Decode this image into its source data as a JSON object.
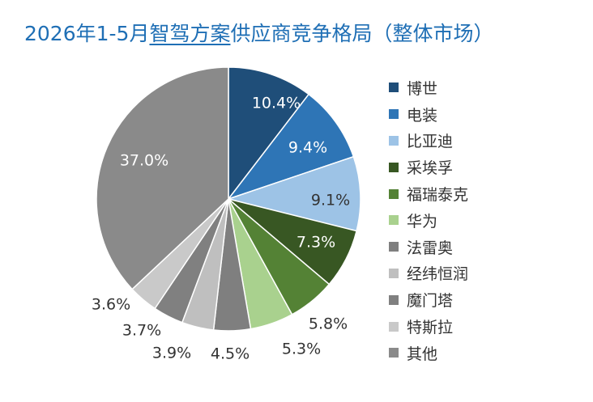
{
  "title": {
    "pre": "2026年1-5月",
    "underlined": "智驾方案",
    "post": "供应商竞争格局（整体市场）"
  },
  "chart_data": {
    "type": "pie",
    "unit": "%",
    "start_angle_deg": 0,
    "direction": "clockwise",
    "legend_position": "right",
    "slices": [
      {
        "name": "博世",
        "value": 10.4,
        "label": "10.4%",
        "color": "#1F4E79",
        "label_style": "inside",
        "label_color": "#ffffff"
      },
      {
        "name": "电装",
        "value": 9.4,
        "label": "9.4%",
        "color": "#2E75B6",
        "label_style": "inside",
        "label_color": "#ffffff"
      },
      {
        "name": "比亚迪",
        "value": 9.1,
        "label": "9.1%",
        "color": "#9DC3E6",
        "label_style": "inside",
        "label_color": "#333333"
      },
      {
        "name": "采埃孚",
        "value": 7.3,
        "label": "7.3%",
        "color": "#385723",
        "label_style": "inside",
        "label_color": "#ffffff"
      },
      {
        "name": "福瑞泰克",
        "value": 5.8,
        "label": "5.8%",
        "color": "#548235",
        "label_style": "outside",
        "label_color": "#333333"
      },
      {
        "name": "华为",
        "value": 5.3,
        "label": "5.3%",
        "color": "#A9D18E",
        "label_style": "outside",
        "label_color": "#333333"
      },
      {
        "name": "法雷奥",
        "value": 4.5,
        "label": "4.5%",
        "color": "#7F7F7F",
        "label_style": "outside",
        "label_color": "#333333"
      },
      {
        "name": "经纬恒润",
        "value": 3.9,
        "label": "3.9%",
        "color": "#BFBFBF",
        "label_style": "outside",
        "label_color": "#333333"
      },
      {
        "name": "魔门塔",
        "value": 3.7,
        "label": "3.7%",
        "color": "#808080",
        "label_style": "outside",
        "label_color": "#333333"
      },
      {
        "name": "特斯拉",
        "value": 3.6,
        "label": "3.6%",
        "color": "#C9C9C9",
        "label_style": "outside",
        "label_color": "#333333"
      },
      {
        "name": "其他",
        "value": 37.0,
        "label": "37.0%",
        "color": "#8A8A8A",
        "label_style": "inside",
        "label_color": "#ffffff"
      }
    ]
  }
}
